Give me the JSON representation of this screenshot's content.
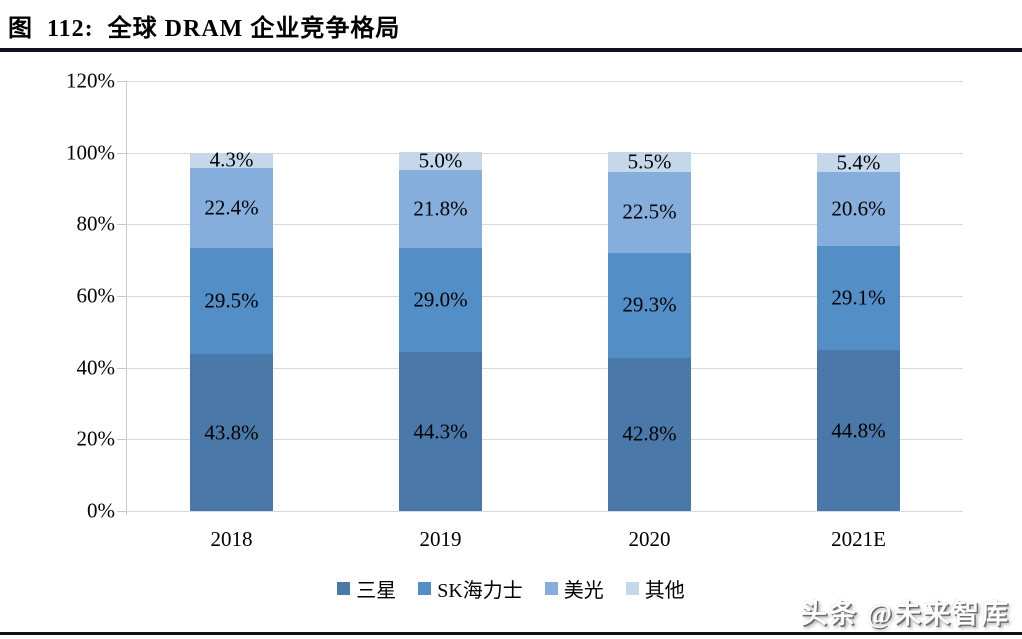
{
  "figure": {
    "title": "图  112:  全球 DRAM 企业竞争格局"
  },
  "watermark": {
    "text": "头条 @未来智库"
  },
  "chart_data": {
    "type": "bar",
    "stacked": true,
    "title": "全球DRAM企业竞争格局",
    "categories": [
      "2018",
      "2019",
      "2020",
      "2021E"
    ],
    "series": [
      {
        "name": "三星",
        "color": "#4a79a9",
        "values": [
          43.8,
          44.3,
          42.8,
          44.8
        ]
      },
      {
        "name": "SK海力士",
        "color": "#548ec6",
        "values": [
          29.5,
          29.0,
          29.3,
          29.1
        ]
      },
      {
        "name": "美光",
        "color": "#85aedd",
        "values": [
          22.4,
          21.8,
          22.5,
          20.6
        ]
      },
      {
        "name": "其他",
        "color": "#c5d7eb",
        "values": [
          4.3,
          5.0,
          5.5,
          5.4
        ]
      }
    ],
    "xlabel": "",
    "ylabel": "",
    "ylim": [
      0,
      120
    ],
    "yticks": [
      0,
      20,
      40,
      60,
      80,
      100,
      120
    ],
    "ytick_suffix": "%",
    "value_suffix": "%",
    "grid": true,
    "legend_position": "bottom",
    "gridline_color": "#d9d9d9",
    "axis_color": "#c9c9c9"
  }
}
